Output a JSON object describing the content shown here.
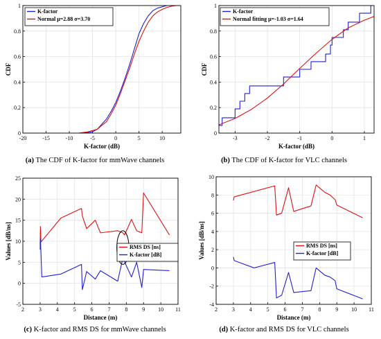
{
  "chart_data": [
    {
      "id": "a",
      "type": "line",
      "caption_letter": "(a)",
      "caption_text": "The CDF of K-factor for mmWave channels",
      "xlabel": "K-factor (dB)",
      "ylabel": "CDF",
      "xlim": [
        -20,
        14
      ],
      "ylim": [
        0,
        1
      ],
      "xticks": [
        -20,
        -15,
        -10,
        -5,
        0,
        5,
        10
      ],
      "yticks": [
        0,
        0.2,
        0.4,
        0.6,
        0.8,
        1
      ],
      "ytick_labels": [
        "0",
        "0.2",
        "0.4",
        "0.6",
        "0.8",
        "1"
      ],
      "grid": true,
      "legend_position": "top-left",
      "series": [
        {
          "name": "K-factor",
          "color": "#1f1fd6",
          "points": [
            [
              -20,
              0
            ],
            [
              -7,
              0
            ],
            [
              -5,
              0.01
            ],
            [
              -4,
              0.03
            ],
            [
              -3,
              0.07
            ],
            [
              -2,
              0.11
            ],
            [
              -1,
              0.17
            ],
            [
              0,
              0.24
            ],
            [
              1,
              0.33
            ],
            [
              2,
              0.43
            ],
            [
              3,
              0.54
            ],
            [
              4,
              0.66
            ],
            [
              5,
              0.78
            ],
            [
              6,
              0.86
            ],
            [
              7,
              0.92
            ],
            [
              8,
              0.96
            ],
            [
              9,
              0.98
            ],
            [
              10,
              0.99
            ],
            [
              11,
              1.0
            ],
            [
              14,
              1.0
            ]
          ]
        },
        {
          "name": "Normal μ=2.88 σ=3.70",
          "color": "#e01010",
          "points": [
            [
              -20,
              0
            ],
            [
              -8,
              0.0
            ],
            [
              -6,
              0.01
            ],
            [
              -4,
              0.03
            ],
            [
              -2,
              0.09
            ],
            [
              -1,
              0.15
            ],
            [
              0,
              0.22
            ],
            [
              1,
              0.31
            ],
            [
              2,
              0.41
            ],
            [
              3,
              0.51
            ],
            [
              4,
              0.62
            ],
            [
              5,
              0.72
            ],
            [
              6,
              0.8
            ],
            [
              7,
              0.87
            ],
            [
              8,
              0.92
            ],
            [
              9,
              0.95
            ],
            [
              10,
              0.97
            ],
            [
              11,
              0.985
            ],
            [
              12,
              0.995
            ],
            [
              13,
              1.0
            ],
            [
              14,
              1.0
            ]
          ]
        }
      ]
    },
    {
      "id": "b",
      "type": "line",
      "caption_letter": "(b)",
      "caption_text": "The CDF of K-factor for VLC channels",
      "xlabel": "K-factor (dB)",
      "ylabel": "CDF",
      "xlim": [
        -3.5,
        1.3
      ],
      "ylim": [
        0,
        1
      ],
      "xticks": [
        -3,
        -2,
        -1,
        0,
        1
      ],
      "yticks": [
        0,
        0.2,
        0.4,
        0.6,
        0.8,
        1
      ],
      "ytick_labels": [
        "0",
        "0.2",
        "0.4",
        "0.6",
        "0.8",
        "1"
      ],
      "grid": true,
      "legend_position": "top-left",
      "series": [
        {
          "name": "K-factor",
          "color": "#1f1fd6",
          "step": true,
          "points": [
            [
              -3.5,
              0.06
            ],
            [
              -3.4,
              0.06
            ],
            [
              -3.4,
              0.12
            ],
            [
              -3.0,
              0.12
            ],
            [
              -3.0,
              0.19
            ],
            [
              -2.85,
              0.19
            ],
            [
              -2.85,
              0.25
            ],
            [
              -2.7,
              0.25
            ],
            [
              -2.7,
              0.31
            ],
            [
              -2.55,
              0.31
            ],
            [
              -2.55,
              0.37
            ],
            [
              -1.5,
              0.37
            ],
            [
              -1.5,
              0.44
            ],
            [
              -1.0,
              0.44
            ],
            [
              -1.0,
              0.5
            ],
            [
              -0.65,
              0.5
            ],
            [
              -0.65,
              0.56
            ],
            [
              -0.2,
              0.56
            ],
            [
              -0.2,
              0.62
            ],
            [
              -0.05,
              0.62
            ],
            [
              -0.05,
              0.69
            ],
            [
              0.0,
              0.69
            ],
            [
              0.0,
              0.75
            ],
            [
              0.35,
              0.75
            ],
            [
              0.35,
              0.81
            ],
            [
              0.5,
              0.81
            ],
            [
              0.5,
              0.87
            ],
            [
              0.85,
              0.87
            ],
            [
              0.85,
              0.94
            ],
            [
              1.2,
              0.94
            ],
            [
              1.2,
              1.0
            ],
            [
              1.3,
              1.0
            ]
          ]
        },
        {
          "name": "Normal fitting μ=-1.03 σ=1.64",
          "color": "#e01010",
          "points": [
            [
              -3.5,
              0.065
            ],
            [
              -3.0,
              0.115
            ],
            [
              -2.5,
              0.185
            ],
            [
              -2.0,
              0.275
            ],
            [
              -1.5,
              0.385
            ],
            [
              -1.03,
              0.5
            ],
            [
              -0.5,
              0.625
            ],
            [
              0.0,
              0.735
            ],
            [
              0.5,
              0.825
            ],
            [
              1.0,
              0.885
            ],
            [
              1.3,
              0.915
            ]
          ]
        }
      ]
    },
    {
      "id": "c",
      "type": "line",
      "caption_letter": "(c)",
      "caption_text": "K-factor and RMS DS for mmWave channels",
      "xlabel": "Distance (m)",
      "ylabel": "Values [dB/ns]",
      "xlim": [
        2,
        11
      ],
      "ylim": [
        -5,
        25
      ],
      "xticks": [
        2,
        3,
        4,
        5,
        6,
        7,
        8,
        9,
        10,
        11
      ],
      "yticks": [
        -5,
        0,
        5,
        10,
        15,
        20,
        25
      ],
      "ytick_labels": [
        "-5",
        "0",
        "5",
        "10",
        "15",
        "20",
        "25"
      ],
      "grid": true,
      "legend_position": "right-middle",
      "ellipse": {
        "cx": 7.8,
        "cy": 8.5,
        "rx": 0.35,
        "ry": 4.0
      },
      "series": [
        {
          "name": "RMS DS [ns]",
          "color": "#e01010",
          "points": [
            [
              3.0,
              9.0
            ],
            [
              3.02,
              13.5
            ],
            [
              3.05,
              9.8
            ],
            [
              4.2,
              15.5
            ],
            [
              5.4,
              17.8
            ],
            [
              5.45,
              16.0
            ],
            [
              5.7,
              13.0
            ],
            [
              6.2,
              15.0
            ],
            [
              6.5,
              12.0
            ],
            [
              7.5,
              12.5
            ],
            [
              7.8,
              12.0
            ],
            [
              7.9,
              11.5
            ],
            [
              8.3,
              15.2
            ],
            [
              8.6,
              12.5
            ],
            [
              8.9,
              12.0
            ],
            [
              9.0,
              21.5
            ],
            [
              10.5,
              11.5
            ]
          ]
        },
        {
          "name": "K-factor [dB]",
          "color": "#1f1fd6",
          "points": [
            [
              3.0,
              8.0
            ],
            [
              3.02,
              10.5
            ],
            [
              3.1,
              1.5
            ],
            [
              4.2,
              2.2
            ],
            [
              5.4,
              4.5
            ],
            [
              5.45,
              -1.5
            ],
            [
              5.7,
              2.8
            ],
            [
              6.2,
              1.0
            ],
            [
              6.5,
              3.0
            ],
            [
              7.5,
              0.5
            ],
            [
              7.8,
              6.0
            ],
            [
              8.3,
              1.5
            ],
            [
              8.6,
              5.0
            ],
            [
              8.9,
              -1.0
            ],
            [
              9.0,
              3.3
            ],
            [
              10.5,
              3.0
            ]
          ]
        }
      ]
    },
    {
      "id": "d",
      "type": "line",
      "caption_letter": "(d)",
      "caption_text": "K-factor and RMS DS for VLC channels",
      "xlabel": "Distance (m)",
      "ylabel": "Values [dB/ns]",
      "xlim": [
        2,
        11
      ],
      "ylim": [
        -4,
        10
      ],
      "xticks": [
        2,
        3,
        4,
        5,
        6,
        7,
        8,
        9,
        10,
        11
      ],
      "yticks": [
        -4,
        -2,
        0,
        2,
        4,
        6,
        8,
        10
      ],
      "ytick_labels": [
        "-4",
        "-2",
        "0",
        "2",
        "4",
        "6",
        "8",
        "10"
      ],
      "grid": true,
      "legend_position": "right-middle",
      "series": [
        {
          "name": "RMS DS [ns]",
          "color": "#e01010",
          "points": [
            [
              3.0,
              7.4
            ],
            [
              3.05,
              7.8
            ],
            [
              5.4,
              9.0
            ],
            [
              5.5,
              5.8
            ],
            [
              5.8,
              6.0
            ],
            [
              6.2,
              8.8
            ],
            [
              6.5,
              6.2
            ],
            [
              7.5,
              6.8
            ],
            [
              7.8,
              9.1
            ],
            [
              8.3,
              8.3
            ],
            [
              8.6,
              8.0
            ],
            [
              8.9,
              7.5
            ],
            [
              9.0,
              6.9
            ],
            [
              10.5,
              5.5
            ]
          ]
        },
        {
          "name": "K-factor [dB]",
          "color": "#1f1fd6",
          "points": [
            [
              3.0,
              1.2
            ],
            [
              3.05,
              0.8
            ],
            [
              4.2,
              0.0
            ],
            [
              5.4,
              0.6
            ],
            [
              5.5,
              -3.3
            ],
            [
              5.8,
              -3.0
            ],
            [
              6.2,
              -0.5
            ],
            [
              6.5,
              -2.7
            ],
            [
              7.5,
              -2.5
            ],
            [
              7.8,
              0.0
            ],
            [
              8.3,
              -0.8
            ],
            [
              8.6,
              -1.0
            ],
            [
              8.9,
              -1.4
            ],
            [
              9.0,
              -2.3
            ],
            [
              10.5,
              -3.4
            ]
          ]
        }
      ]
    }
  ]
}
